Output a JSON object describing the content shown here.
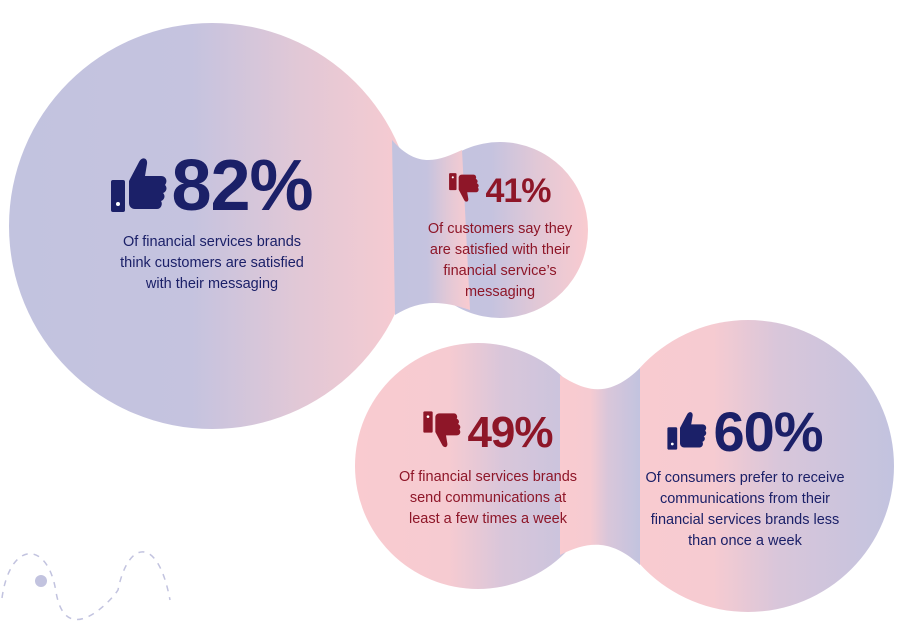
{
  "colors": {
    "navy": "#1b2068",
    "maroon": "#8e1628",
    "lavender": "#c2c3df",
    "pink": "#f9cbd0"
  },
  "stats": {
    "brands_satisfied": {
      "value": "82%",
      "icon": "thumbs-up-icon",
      "lines": [
        "Of financial services brands",
        "think customers are satisfied",
        "with their messaging"
      ]
    },
    "customers_satisfied": {
      "value": "41%",
      "icon": "thumbs-down-icon",
      "lines": [
        "Of customers say they",
        "are satisfied with their",
        "financial service’s",
        "messaging"
      ]
    },
    "brands_send_weekly": {
      "value": "49%",
      "icon": "thumbs-down-icon",
      "lines": [
        "Of financial services brands",
        "send communications at",
        "least a few times a week"
      ]
    },
    "consumers_prefer_less": {
      "value": "60%",
      "icon": "thumbs-up-icon",
      "lines": [
        "Of consumers prefer to receive",
        "communications from their",
        "financial services brands less",
        "than once a week"
      ]
    }
  },
  "decoration": {
    "icon": "dashed-wave-icon"
  }
}
